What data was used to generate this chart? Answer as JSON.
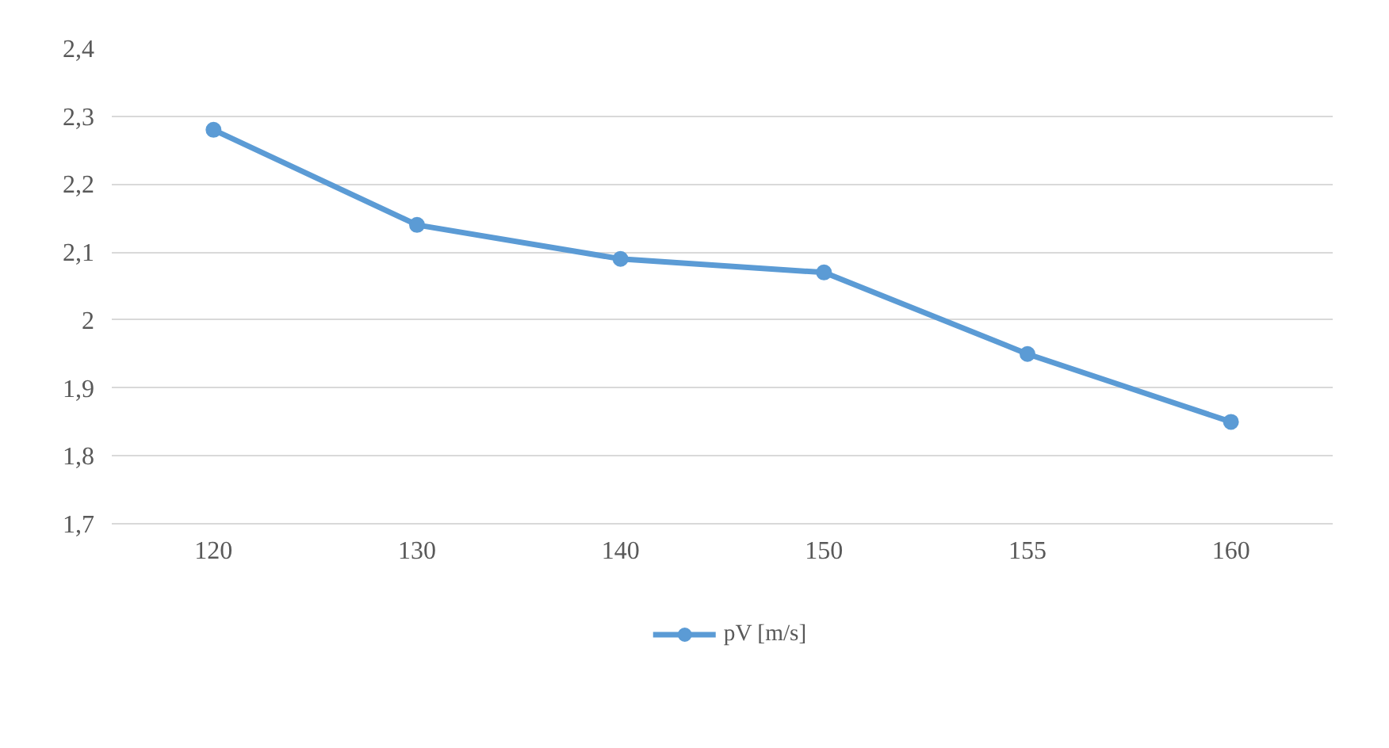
{
  "chart_data": {
    "type": "line",
    "categories": [
      "120",
      "130",
      "140",
      "150",
      "155",
      "160"
    ],
    "series": [
      {
        "name": "pV [m/s]",
        "color": "#5b9bd5",
        "values": [
          2.28,
          2.14,
          2.09,
          2.07,
          1.95,
          1.85
        ]
      }
    ],
    "ylim": [
      1.7,
      2.4
    ],
    "yticks": [
      {
        "value": 1.7,
        "label": "1,7"
      },
      {
        "value": 1.8,
        "label": "1,8"
      },
      {
        "value": 1.9,
        "label": "1,9"
      },
      2,
      {
        "value": 2.1,
        "label": "2,1"
      },
      {
        "value": 2.2,
        "label": "2,2"
      },
      {
        "value": 2.3,
        "label": "2,3"
      },
      {
        "value": 2.4,
        "label": "2,4"
      }
    ],
    "grid": "y",
    "legend": "bottom",
    "marker": "circle",
    "line_style": "solid"
  }
}
